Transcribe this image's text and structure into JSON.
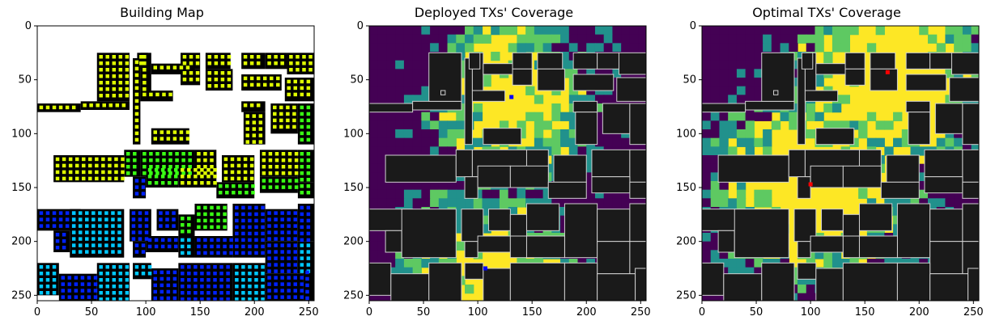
{
  "chart_data": [
    {
      "type": "heatmap",
      "title": "Building Map",
      "xlim": [
        0,
        255
      ],
      "ylim": [
        255,
        0
      ],
      "xticks": [
        0,
        50,
        100,
        150,
        200,
        250
      ],
      "yticks": [
        0,
        50,
        100,
        150,
        200,
        250
      ],
      "xtick_labels": [
        "0",
        "50",
        "100",
        "150",
        "200",
        "250"
      ],
      "ytick_labels": [
        "0",
        "50",
        "100",
        "150",
        "200",
        "250"
      ],
      "grid": false,
      "colors": {
        "background": "#ffffff",
        "building": "#000000",
        "markers": [
          "#dfff00",
          "#39ff14",
          "#00c8ff",
          "#0022ff"
        ]
      }
    },
    {
      "type": "heatmap",
      "title": "Deployed TXs' Coverage",
      "xlim": [
        0,
        255
      ],
      "ylim": [
        255,
        0
      ],
      "xticks": [
        0,
        50,
        100,
        150,
        200,
        250
      ],
      "yticks": [
        0,
        50,
        100,
        150,
        200,
        250
      ],
      "xtick_labels": [
        "0",
        "50",
        "100",
        "150",
        "200",
        "250"
      ],
      "ytick_labels": [
        "0",
        "50",
        "100",
        "150",
        "200",
        "250"
      ],
      "grid": false,
      "colormap": [
        "#440154",
        "#21918c",
        "#5ec962",
        "#fde725"
      ],
      "transmitters": [
        {
          "x": 131,
          "y": 66,
          "color": "#0000ff"
        },
        {
          "x": 107,
          "y": 225,
          "color": "#0000ff"
        }
      ]
    },
    {
      "type": "heatmap",
      "title": "Optimal TXs' Coverage",
      "xlim": [
        0,
        255
      ],
      "ylim": [
        255,
        0
      ],
      "xticks": [
        0,
        50,
        100,
        150,
        200,
        250
      ],
      "yticks": [
        0,
        50,
        100,
        150,
        200,
        250
      ],
      "xtick_labels": [
        "0",
        "50",
        "100",
        "150",
        "200",
        "250"
      ],
      "ytick_labels": [
        "0",
        "50",
        "100",
        "150",
        "200",
        "250"
      ],
      "grid": false,
      "colormap": [
        "#440154",
        "#21918c",
        "#5ec962",
        "#fde725"
      ],
      "transmitters": [
        {
          "x": 171,
          "y": 43,
          "color": "#ff0000"
        },
        {
          "x": 100,
          "y": 147,
          "color": "#ff0000"
        }
      ]
    }
  ]
}
